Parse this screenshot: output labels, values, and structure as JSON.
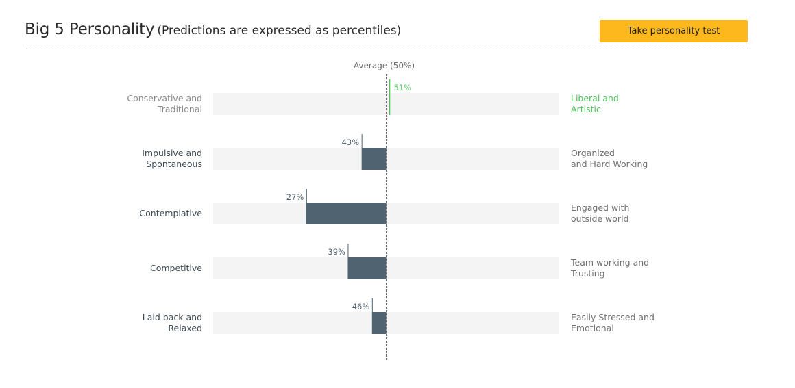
{
  "header": {
    "title": "Big 5 Personality",
    "subtitle": "(Predictions are expressed as percentiles)",
    "cta_label": "Take personality test"
  },
  "colors": {
    "bar": "#4f6370",
    "track": "#f4f4f4",
    "highlight": "#52c35c",
    "left_label": "#3e4a52",
    "right_label": "#6f6f6f",
    "muted_left_label": "#8a8a8a"
  },
  "chart_data": {
    "type": "bar",
    "orientation": "horizontal-diverging",
    "baseline_label": "Average (50%)",
    "baseline": 50,
    "xlim": [
      0,
      100
    ],
    "value_suffix": "%",
    "rows": [
      {
        "left_label": "Conservative and Traditional",
        "right_label": "Liberal and Artistic",
        "value": 51,
        "highlight": true
      },
      {
        "left_label": "Impulsive and Spontaneous",
        "right_label": "Organized and Hard Working",
        "value": 43
      },
      {
        "left_label": "Contemplative",
        "right_label": "Engaged with outside world",
        "value": 27
      },
      {
        "left_label": "Competitive",
        "right_label": "Team working and Trusting",
        "value": 39
      },
      {
        "left_label": "Laid back and Relaxed",
        "right_label": "Easily Stressed and Emotional",
        "value": 46
      }
    ]
  }
}
